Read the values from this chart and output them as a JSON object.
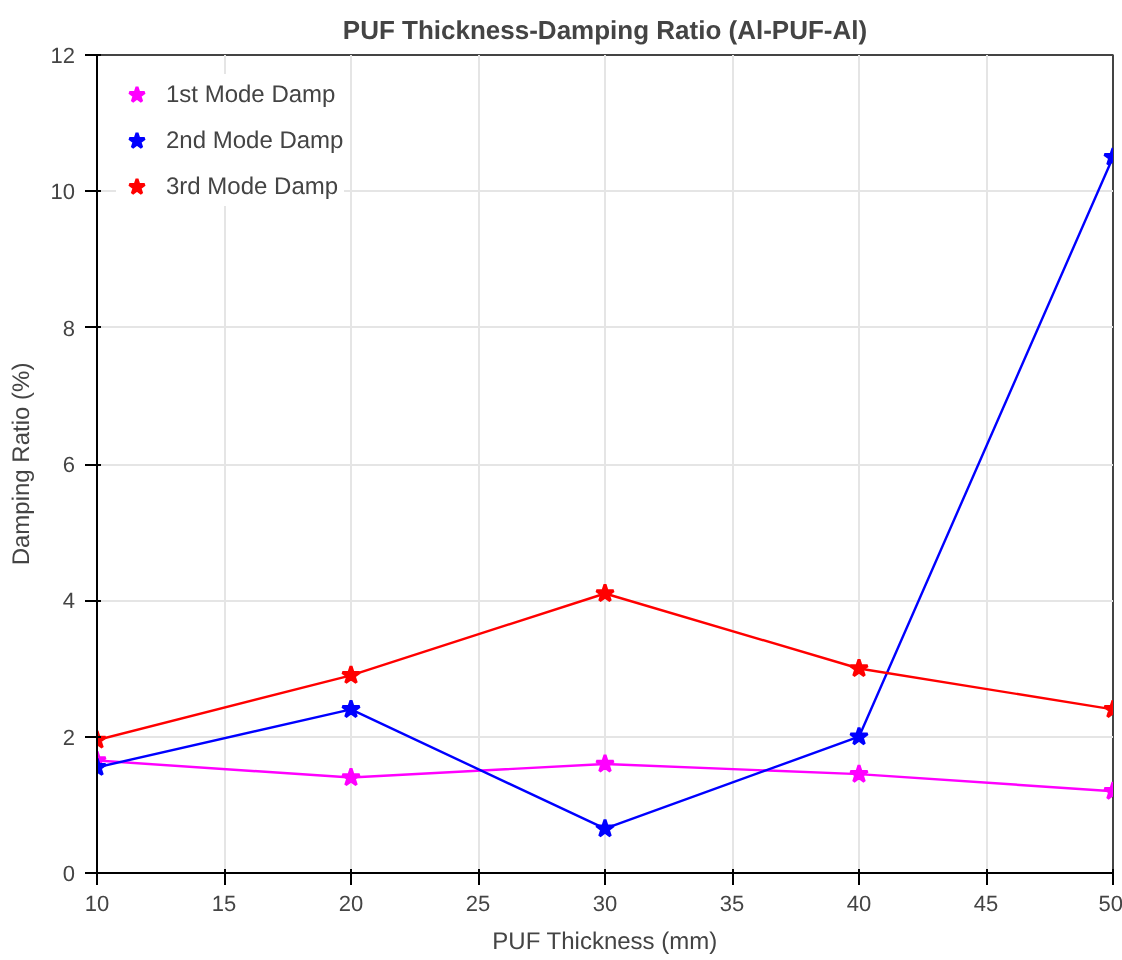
{
  "chart_data": {
    "type": "line",
    "title": "PUF Thickness-Damping Ratio (Al-PUF-Al)",
    "xlabel": "PUF Thickness (mm)",
    "ylabel": "Damping Ratio (%)",
    "x": [
      10,
      20,
      30,
      40,
      50
    ],
    "series": [
      {
        "name": "1st Mode Damp",
        "color": "#ff00ff",
        "values": [
          1.65,
          1.4,
          1.6,
          1.45,
          1.2
        ]
      },
      {
        "name": "2nd Mode Damp",
        "color": "#0000ff",
        "values": [
          1.55,
          2.4,
          0.65,
          2.0,
          10.5
        ]
      },
      {
        "name": "3rd Mode Damp",
        "color": "#ff0000",
        "values": [
          1.95,
          2.9,
          4.1,
          3.0,
          2.4
        ]
      }
    ],
    "xlim": [
      10,
      50
    ],
    "xticks": [
      10,
      15,
      20,
      25,
      30,
      35,
      40,
      45,
      50
    ],
    "ylim": [
      0,
      12
    ],
    "yticks": [
      0,
      2,
      4,
      6,
      8,
      10,
      12
    ],
    "grid": true,
    "legend": "top left",
    "marker": "star",
    "line_style": "solid"
  }
}
